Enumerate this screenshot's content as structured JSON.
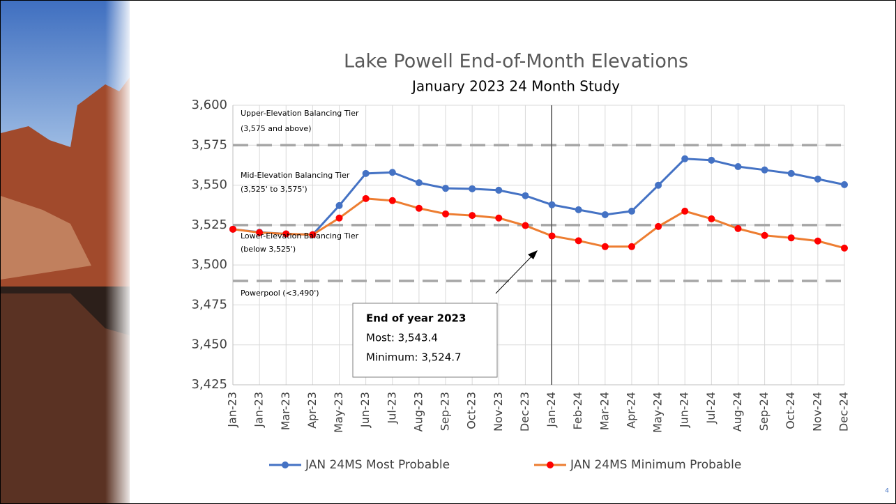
{
  "chart_data": {
    "type": "line",
    "title": "Lake Powell End-of-Month Elevations",
    "subtitle": "January 2023  24 Month Study",
    "categories": [
      "Jan-23",
      "Jan-23",
      "Mar-23",
      "Apr-23",
      "May-23",
      "Jun-23",
      "Jul-23",
      "Aug-23",
      "Sep-23",
      "Oct-23",
      "Nov-23",
      "Dec-23",
      "Jan-24",
      "Feb-24",
      "Mar-24",
      "Apr-24",
      "May-24",
      "Jun-24",
      "Jul-24",
      "Aug-24",
      "Sep-24",
      "Oct-24",
      "Nov-24",
      "Dec-24"
    ],
    "series": [
      {
        "name": "JAN 24MS Most Probable",
        "color": "#4472c4",
        "marker_color": "#4472c4",
        "values": [
          3522.4,
          3520.5,
          3519.5,
          3519,
          3537.2,
          3557.3,
          3558,
          3551.5,
          3548,
          3547.7,
          3546.8,
          3543.4,
          3537.7,
          3534.6,
          3531.5,
          3533.7,
          3549.9,
          3566.5,
          3565.6,
          3561.6,
          3559.5,
          3557.3,
          3553.8,
          3550.3
        ]
      },
      {
        "name": "JAN 24MS Minimum Probable",
        "color": "#ed7d31",
        "marker_color": "#ff0000",
        "values": [
          3522.4,
          3520.3,
          3519.5,
          3519,
          3529.4,
          3541.6,
          3540.3,
          3535.5,
          3532,
          3531,
          3529.4,
          3524.7,
          3518.2,
          3515.2,
          3511.5,
          3511.5,
          3524.1,
          3533.7,
          3528.9,
          3522.8,
          3518.5,
          3517,
          3515,
          3510.6
        ]
      }
    ],
    "ylim": [
      3425,
      3600
    ],
    "yticks": [
      {
        "value": 3425,
        "label": "3,425"
      },
      {
        "value": 3450,
        "label": "3,450"
      },
      {
        "value": 3475,
        "label": "3,475"
      },
      {
        "value": 3500,
        "label": "3,500"
      },
      {
        "value": 3525,
        "label": "3,525"
      },
      {
        "value": 3550,
        "label": "3,550"
      },
      {
        "value": 3575,
        "label": "3,575"
      },
      {
        "value": 3600,
        "label": "3,600"
      }
    ],
    "grid": true,
    "legend": "bottom",
    "reference_lines": [
      {
        "value": 3575,
        "label": [
          "Upper-Elevation Balancing Tier",
          "(3,575 and above)"
        ]
      },
      {
        "value": 3525,
        "label": [
          "Lower-Elevation Balancing Tier",
          "(below 3,525')"
        ]
      },
      {
        "value": 3490,
        "label": [
          "Powerpool (<3,490')"
        ]
      }
    ],
    "mid_tier_label": [
      "Mid-Elevation Balancing Tier",
      "(3,525' to 3,575')"
    ],
    "annotation": {
      "title": "End of year 2023",
      "lines": [
        "Most: 3,543.4",
        "Minimum: 3,524.7"
      ]
    }
  },
  "slide_number": "4"
}
